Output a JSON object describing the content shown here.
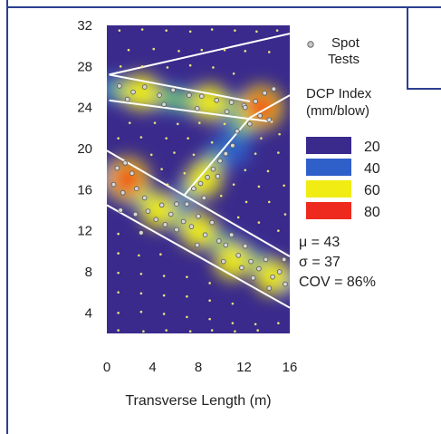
{
  "chart_data": {
    "type": "heatmap",
    "title": "",
    "xlabel": "Transverse Length (m)",
    "ylabel": "",
    "xlim": [
      0,
      16
    ],
    "ylim": [
      2,
      32
    ],
    "x_ticks": [
      "0",
      "4",
      "8",
      "12",
      "16"
    ],
    "y_ticks": [
      "4",
      "8",
      "12",
      "16",
      "20",
      "24",
      "28",
      "32"
    ],
    "legend": {
      "marker_label": "Spot Tests",
      "title": "DCP Index (mm/blow)",
      "bins": [
        {
          "label": "20",
          "color": "#3a2a8c"
        },
        {
          "label": "40",
          "color": "#2f5fc9"
        },
        {
          "label": "60",
          "color": "#f0ec14"
        },
        {
          "label": "80",
          "color": "#ee2a1e"
        }
      ]
    },
    "stats": [
      {
        "label": "μ = 43"
      },
      {
        "label": "σ = 37"
      },
      {
        "label": "COV = 86%"
      }
    ],
    "background_value": 20,
    "hotspots": [
      {
        "x": 1.8,
        "y": 17.0,
        "value": 80
      },
      {
        "x": 13.5,
        "y": 24.0,
        "value": 80
      },
      {
        "x": 8.0,
        "y": 12.0,
        "value": 60
      },
      {
        "x": 11.0,
        "y": 9.0,
        "value": 60
      },
      {
        "x": 4.5,
        "y": 14.0,
        "value": 60
      },
      {
        "x": 14.5,
        "y": 7.5,
        "value": 60
      },
      {
        "x": 3.0,
        "y": 25.5,
        "value": 60
      },
      {
        "x": 9.0,
        "y": 24.5,
        "value": 60
      },
      {
        "x": 8.5,
        "y": 17.0,
        "value": 55
      },
      {
        "x": 11.0,
        "y": 20.0,
        "value": 50
      }
    ],
    "trench_lines": [
      {
        "x": [
          0.2,
          16
        ],
        "y": [
          27.2,
          31.2
        ]
      },
      {
        "x": [
          0.2,
          12.5
        ],
        "y": [
          27.2,
          24.6
        ]
      },
      {
        "x": [
          0.2,
          14.5
        ],
        "y": [
          24.7,
          22.6
        ]
      },
      {
        "x": [
          0,
          16
        ],
        "y": [
          19.8,
          9.5
        ]
      },
      {
        "x": [
          0,
          16
        ],
        "y": [
          14.5,
          4.5
        ]
      },
      {
        "x": [
          6.8,
          12.5
        ],
        "y": [
          15.5,
          23.0
        ]
      },
      {
        "x": [
          12.5,
          16
        ],
        "y": [
          23.0,
          25.2
        ]
      }
    ],
    "spot_tests": [
      [
        1.1,
        26.1
      ],
      [
        2.3,
        25.5
      ],
      [
        3.3,
        26.0
      ],
      [
        4.6,
        25.2
      ],
      [
        5.8,
        25.7
      ],
      [
        7.2,
        25.2
      ],
      [
        8.3,
        25.1
      ],
      [
        9.6,
        24.7
      ],
      [
        10.9,
        24.5
      ],
      [
        12.0,
        24.2
      ],
      [
        1.8,
        24.8
      ],
      [
        5.0,
        24.3
      ],
      [
        7.9,
        23.9
      ],
      [
        10.5,
        23.6
      ],
      [
        13.0,
        24.6
      ],
      [
        13.8,
        25.4
      ],
      [
        14.6,
        25.8
      ],
      [
        13.4,
        23.2
      ],
      [
        14.2,
        22.8
      ],
      [
        12.5,
        22.4
      ],
      [
        12.1,
        24.0
      ],
      [
        11.4,
        21.7
      ],
      [
        11.0,
        20.3
      ],
      [
        10.4,
        19.5
      ],
      [
        9.9,
        18.8
      ],
      [
        9.3,
        18.0
      ],
      [
        8.8,
        17.2
      ],
      [
        8.2,
        16.6
      ],
      [
        7.6,
        16.1
      ],
      [
        9.7,
        17.3
      ],
      [
        8.5,
        15.2
      ],
      [
        0.9,
        18.1
      ],
      [
        1.6,
        18.6
      ],
      [
        2.2,
        17.6
      ],
      [
        0.6,
        16.5
      ],
      [
        1.4,
        15.7
      ],
      [
        2.6,
        16.1
      ],
      [
        3.3,
        15.2
      ],
      [
        1.2,
        14.0
      ],
      [
        2.5,
        13.6
      ],
      [
        3.6,
        13.9
      ],
      [
        4.3,
        13.1
      ],
      [
        5.1,
        12.6
      ],
      [
        5.6,
        13.6
      ],
      [
        6.1,
        12.1
      ],
      [
        6.7,
        12.9
      ],
      [
        7.0,
        14.6
      ],
      [
        7.4,
        12.4
      ],
      [
        8.0,
        13.4
      ],
      [
        8.6,
        11.6
      ],
      [
        9.2,
        12.8
      ],
      [
        9.8,
        11.0
      ],
      [
        10.4,
        10.6
      ],
      [
        10.9,
        11.6
      ],
      [
        11.5,
        9.6
      ],
      [
        12.1,
        10.5
      ],
      [
        12.6,
        9.0
      ],
      [
        13.3,
        8.3
      ],
      [
        13.9,
        9.2
      ],
      [
        14.5,
        7.5
      ],
      [
        15.1,
        8.0
      ],
      [
        15.6,
        6.8
      ],
      [
        12.8,
        7.4
      ],
      [
        10.2,
        9.0
      ],
      [
        6.1,
        14.6
      ],
      [
        4.8,
        14.5
      ],
      [
        15.5,
        9.2
      ],
      [
        14.2,
        6.4
      ],
      [
        11.8,
        8.4
      ],
      [
        7.9,
        10.6
      ],
      [
        3.0,
        11.8
      ]
    ],
    "background_points": [
      [
        1.1,
        31.5
      ],
      [
        3.1,
        31.6
      ],
      [
        5.2,
        31.5
      ],
      [
        7.3,
        31.4
      ],
      [
        9.2,
        31.6
      ],
      [
        11.2,
        31.5
      ],
      [
        13.1,
        31.4
      ],
      [
        14.9,
        31.5
      ],
      [
        1.9,
        29.6
      ],
      [
        4.1,
        29.7
      ],
      [
        6.3,
        29.5
      ],
      [
        8.3,
        29.6
      ],
      [
        10.3,
        29.6
      ],
      [
        12.1,
        29.5
      ],
      [
        14.2,
        29.4
      ],
      [
        1.2,
        28.0
      ],
      [
        3.1,
        28.0
      ],
      [
        5.3,
        27.9
      ],
      [
        7.3,
        28.1
      ],
      [
        9.3,
        27.9
      ],
      [
        11.1,
        27.3
      ],
      [
        2.0,
        22.5
      ],
      [
        4.2,
        22.5
      ],
      [
        6.2,
        22.4
      ],
      [
        8.1,
        22.5
      ],
      [
        10.3,
        22.4
      ],
      [
        1.0,
        21.0
      ],
      [
        3.0,
        21.1
      ],
      [
        5.2,
        21.0
      ],
      [
        7.1,
        21.0
      ],
      [
        9.2,
        20.6
      ],
      [
        13.5,
        21.0
      ],
      [
        15.1,
        21.4
      ],
      [
        3.9,
        19.4
      ],
      [
        5.9,
        19.6
      ],
      [
        7.6,
        19.4
      ],
      [
        13.0,
        19.5
      ],
      [
        15.0,
        19.6
      ],
      [
        4.8,
        18.0
      ],
      [
        6.8,
        17.6
      ],
      [
        12.1,
        17.9
      ],
      [
        14.1,
        17.8
      ],
      [
        15.5,
        16.4
      ],
      [
        5.3,
        16.5
      ],
      [
        11.1,
        16.5
      ],
      [
        13.3,
        16.3
      ],
      [
        10.0,
        15.4
      ],
      [
        12.2,
        14.8
      ],
      [
        14.2,
        14.8
      ],
      [
        15.6,
        13.6
      ],
      [
        11.5,
        13.3
      ],
      [
        13.3,
        12.8
      ],
      [
        15.0,
        12.0
      ],
      [
        1.0,
        11.7
      ],
      [
        1.0,
        9.8
      ],
      [
        2.8,
        9.6
      ],
      [
        4.7,
        9.7
      ],
      [
        1.0,
        7.9
      ],
      [
        3.0,
        7.8
      ],
      [
        5.0,
        7.6
      ],
      [
        7.0,
        7.5
      ],
      [
        9.0,
        6.9
      ],
      [
        1.0,
        6.0
      ],
      [
        3.0,
        5.9
      ],
      [
        5.0,
        5.7
      ],
      [
        7.0,
        5.6
      ],
      [
        9.0,
        5.2
      ],
      [
        11.0,
        4.9
      ],
      [
        1.0,
        4.0
      ],
      [
        3.0,
        4.1
      ],
      [
        5.0,
        3.9
      ],
      [
        7.0,
        3.6
      ],
      [
        9.0,
        3.4
      ],
      [
        11.0,
        3.0
      ],
      [
        13.0,
        2.9
      ],
      [
        15.0,
        3.0
      ],
      [
        1.0,
        2.3
      ],
      [
        3.2,
        2.2
      ],
      [
        5.2,
        2.3
      ],
      [
        7.3,
        2.2
      ],
      [
        9.2,
        2.3
      ],
      [
        11.2,
        2.2
      ],
      [
        13.2,
        2.3
      ]
    ]
  }
}
